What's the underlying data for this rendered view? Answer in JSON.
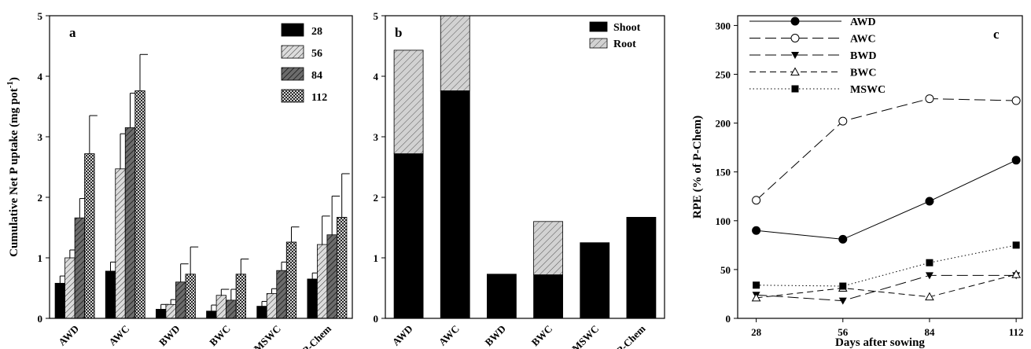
{
  "chart_data": [
    {
      "panel": "a",
      "type": "bar",
      "ylabel": "Cumulative Net P uptake (mg pot",
      "ylabel_sup": "-1",
      "ylabel_tail": ")",
      "ylim": [
        0,
        5
      ],
      "yticks": [
        0,
        1,
        2,
        3,
        4,
        5
      ],
      "categories": [
        "AWD",
        "AWC",
        "BWD",
        "BWC",
        "MSWC",
        "P-Chem"
      ],
      "legend_position": "top-right",
      "series": [
        {
          "name": "28",
          "values": [
            0.58,
            0.78,
            0.15,
            0.12,
            0.2,
            0.65
          ],
          "errors": [
            0.12,
            0.15,
            0.08,
            0.1,
            0.08,
            0.1
          ]
        },
        {
          "name": "56",
          "values": [
            1.0,
            2.47,
            0.23,
            0.38,
            0.41,
            1.22
          ],
          "errors": [
            0.13,
            0.58,
            0.08,
            0.1,
            0.08,
            0.47
          ]
        },
        {
          "name": "84",
          "values": [
            1.66,
            3.15,
            0.6,
            0.3,
            0.79,
            1.38
          ],
          "errors": [
            0.32,
            0.57,
            0.3,
            0.18,
            0.14,
            0.64
          ]
        },
        {
          "name": "112",
          "values": [
            2.72,
            3.76,
            0.73,
            0.73,
            1.26,
            1.67
          ],
          "errors": [
            0.63,
            0.6,
            0.45,
            0.25,
            0.25,
            0.72
          ]
        }
      ]
    },
    {
      "panel": "b",
      "type": "bar",
      "stacked": true,
      "ylim": [
        0,
        5
      ],
      "yticks": [
        0,
        1,
        2,
        3,
        4,
        5
      ],
      "categories": [
        "AWD",
        "AWC",
        "BWD",
        "BWC",
        "MSWC",
        "P-Chem"
      ],
      "legend_position": "top-right",
      "series": [
        {
          "name": "Shoot",
          "values": [
            2.72,
            3.76,
            0.73,
            0.72,
            1.25,
            1.67
          ]
        },
        {
          "name": "Root",
          "values": [
            1.71,
            1.24,
            0.0,
            0.88,
            0.0,
            0.0
          ]
        }
      ]
    },
    {
      "panel": "c",
      "type": "line",
      "ylabel": "RPE (% of P-Chem)",
      "xlabel": "Days after sowing",
      "x": [
        28,
        56,
        84,
        112
      ],
      "xticks": [
        28,
        56,
        84,
        112
      ],
      "ylim": [
        0,
        310
      ],
      "yticks": [
        0,
        50,
        100,
        150,
        200,
        250,
        300
      ],
      "legend_position": "top-left",
      "series": [
        {
          "name": "AWD",
          "values": [
            90,
            81,
            120,
            162
          ],
          "marker": "filled-circle",
          "dash": "solid"
        },
        {
          "name": "AWC",
          "values": [
            121,
            202,
            225,
            223
          ],
          "marker": "open-circle",
          "dash": "longdash"
        },
        {
          "name": "BWD",
          "values": [
            24,
            18,
            44,
            44
          ],
          "marker": "filled-triangle-down",
          "dash": "longdash"
        },
        {
          "name": "BWC",
          "values": [
            21,
            31,
            22,
            45
          ],
          "marker": "open-triangle-up",
          "dash": "dash"
        },
        {
          "name": "MSWC",
          "values": [
            34,
            33,
            57,
            75
          ],
          "marker": "filled-square",
          "dash": "dotted"
        }
      ]
    }
  ]
}
